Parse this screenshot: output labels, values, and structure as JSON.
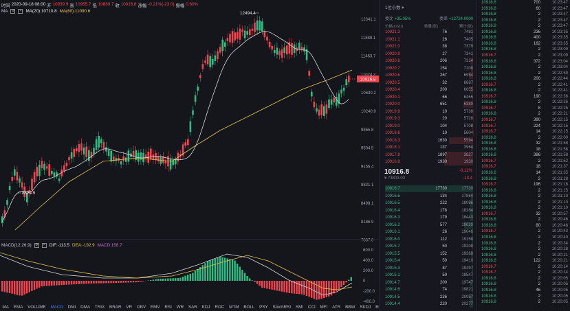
{
  "info": {
    "time_label": "时间",
    "time": "2020-09-18 08:00",
    "open_label": "开",
    "open": "10939.9",
    "high_label": "高",
    "high": "10955.7",
    "low_label": "低",
    "low": "10889.7",
    "close_label": "收",
    "close": "10916.8",
    "change_label": "涨幅",
    "change": "-0.21%(-23.0)",
    "amp_label": "振幅",
    "amp": "0.60%"
  },
  "ma": {
    "label": "MA",
    "ma20": "MA(20):10710.8",
    "ma60": "MA(60):11090.6"
  },
  "macd": {
    "label": "MACD(12,26,9)",
    "dif": "DIF:-113.5",
    "dea": "DEA:-192.9",
    "macd": "MACD:158.7"
  },
  "price_axis": [
    "12341.1",
    "11889.1",
    "11463.7",
    "11024.2",
    "10630.2",
    "10240.9",
    "9865.8",
    "9504.5",
    "9156.4",
    "8821.1",
    "8498.1",
    "8186.9",
    "7887.0"
  ],
  "current_price_tag": "10916.8",
  "chart_markers": {
    "high": "12494.4",
    "low": "8624.9"
  },
  "macd_axis": [
    "600.0",
    "400.0",
    "200.0",
    "0",
    "-200.0",
    "-400.0"
  ],
  "indicators": [
    "MA",
    "EMA",
    "VOLUME",
    "MACD",
    "DMI",
    "DMA",
    "TRIX",
    "BRAR",
    "VR",
    "OBV",
    "EMV",
    "RSI",
    "WR",
    "SAR",
    "KDJ",
    "ROC",
    "MTM",
    "BOLL",
    "PSY",
    "StochRSI",
    "SMI",
    "CCI",
    "MFI",
    "ATR",
    "BBW",
    "SKDJ",
    "BIAS"
  ],
  "active_indicator": "MACD",
  "orderbook": {
    "precision": "1位小数",
    "buy_ratio_label": "委比",
    "buy_ratio": "+35.05%",
    "diff_label": "委差",
    "diff": "+12724.0000",
    "col_price": "价格(USD)",
    "col_amount": "数量(张)",
    "col_total": "累计(张)",
    "asks": [
      {
        "price": "10921.3",
        "amount": "76",
        "total": "7481"
      },
      {
        "price": "10921.1",
        "amount": "26",
        "total": "7405"
      },
      {
        "price": "10921.0",
        "amount": "38",
        "total": "7379"
      },
      {
        "price": "10920.9",
        "amount": "27",
        "total": "7341"
      },
      {
        "price": "10920.8",
        "amount": "206",
        "total": "7314"
      },
      {
        "price": "10920.7",
        "amount": "154",
        "total": "7108"
      },
      {
        "price": "10920.6",
        "amount": "267",
        "total": "6954"
      },
      {
        "price": "10920.5",
        "amount": "32",
        "total": "6687"
      },
      {
        "price": "10920.4",
        "amount": "200",
        "total": "6655"
      },
      {
        "price": "10920.1",
        "amount": "66",
        "total": "6455"
      },
      {
        "price": "10920.0",
        "amount": "651",
        "total": "6389"
      },
      {
        "price": "10919.9",
        "amount": "10",
        "total": "5738"
      },
      {
        "price": "10919.3",
        "amount": "20",
        "total": "5728"
      },
      {
        "price": "10919.0",
        "amount": "104",
        "total": "5708"
      },
      {
        "price": "10918.6",
        "amount": "10",
        "total": "5604"
      },
      {
        "price": "10918.3",
        "amount": "1630",
        "total": "5594"
      },
      {
        "price": "10918.1",
        "amount": "137",
        "total": "3964"
      },
      {
        "price": "10917.9",
        "amount": "1897",
        "total": "3827"
      },
      {
        "price": "10916.8",
        "amount": "1930",
        "total": "1930"
      }
    ],
    "mid_price": "10916.8",
    "mid_change": "-0.12%",
    "mid_cny": "¥ 73803.03",
    "mid_abs": "-13.4",
    "bids": [
      {
        "price": "10916.7",
        "amount": "17730",
        "total": "17730"
      },
      {
        "price": "10916.6",
        "amount": "134",
        "total": "17864"
      },
      {
        "price": "10916.5",
        "amount": "222",
        "total": "18086"
      },
      {
        "price": "10916.4",
        "amount": "178",
        "total": "18264"
      },
      {
        "price": "10916.3",
        "amount": "179",
        "total": "18443"
      },
      {
        "price": "10916.2",
        "amount": "577",
        "total": "19020"
      },
      {
        "price": "10916.1",
        "amount": "26",
        "total": "19046"
      },
      {
        "price": "10916.0",
        "amount": "112",
        "total": "19158"
      },
      {
        "price": "10915.7",
        "amount": "50",
        "total": "19208"
      },
      {
        "price": "10915.5",
        "amount": "152",
        "total": "19360"
      },
      {
        "price": "10915.4",
        "amount": "50",
        "total": "19410"
      },
      {
        "price": "10915.3",
        "amount": "87",
        "total": "19497"
      },
      {
        "price": "10915.1",
        "amount": "50",
        "total": "19547"
      },
      {
        "price": "10914.7",
        "amount": "200",
        "total": "19747"
      },
      {
        "price": "10914.6",
        "amount": "74",
        "total": "19821"
      },
      {
        "price": "10914.5",
        "amount": "236",
        "total": "20057"
      },
      {
        "price": "10914.4",
        "amount": "220",
        "total": "20277"
      }
    ]
  },
  "trades": [
    {
      "price": "10916.8",
      "side": "buy",
      "amount": "700",
      "time": "10:23:47"
    },
    {
      "price": "10916.8",
      "side": "buy",
      "amount": "60",
      "time": "10:23:47"
    },
    {
      "price": "10916.8",
      "side": "buy",
      "amount": "2",
      "time": "10:23:47"
    },
    {
      "price": "10916.8",
      "side": "buy",
      "amount": "2",
      "time": "10:23:47"
    },
    {
      "price": "10916.8",
      "side": "buy",
      "amount": "2",
      "time": "10:23:47"
    },
    {
      "price": "10916.8",
      "side": "buy",
      "amount": "236",
      "time": "10:23:35"
    },
    {
      "price": "10916.8",
      "side": "buy",
      "amount": "400",
      "time": "10:23:35"
    },
    {
      "price": "10916.8",
      "side": "buy",
      "amount": "162",
      "time": "10:23:35"
    },
    {
      "price": "10916.8",
      "side": "buy",
      "amount": "2",
      "time": "10:23:09"
    },
    {
      "price": "10916.7",
      "side": "sell",
      "amount": "2",
      "time": "10:23:09"
    },
    {
      "price": "10916.8",
      "side": "buy",
      "amount": "372",
      "time": "10:23:04"
    },
    {
      "price": "10916.8",
      "side": "buy",
      "amount": "2",
      "time": "10:23:04"
    },
    {
      "price": "10916.8",
      "side": "buy",
      "amount": "2",
      "time": "10:22:59"
    },
    {
      "price": "10916.8",
      "side": "buy",
      "amount": "200",
      "time": "10:22:44"
    },
    {
      "price": "10916.7",
      "side": "sell",
      "amount": "2",
      "time": "10:22:41"
    },
    {
      "price": "10916.8",
      "side": "buy",
      "amount": "2",
      "time": "10:22:41"
    },
    {
      "price": "10916.7",
      "side": "sell",
      "amount": "190",
      "time": "10:22:36"
    },
    {
      "price": "10916.8",
      "side": "buy",
      "amount": "2",
      "time": "10:22:25"
    },
    {
      "price": "10916.7",
      "side": "sell",
      "amount": "8",
      "time": "10:22:25"
    },
    {
      "price": "10916.8",
      "side": "buy",
      "amount": "2",
      "time": "10:22:21"
    },
    {
      "price": "10916.7",
      "side": "sell",
      "amount": "390",
      "time": "10:22:15"
    },
    {
      "price": "10916.7",
      "side": "sell",
      "amount": "224",
      "time": "10:22:15"
    },
    {
      "price": "10916.7",
      "side": "sell",
      "amount": "14",
      "time": "10:22:15"
    },
    {
      "price": "10916.8",
      "side": "buy",
      "amount": "2",
      "time": "10:22:00"
    },
    {
      "price": "10916.8",
      "side": "buy",
      "amount": "32",
      "time": "10:21:58"
    },
    {
      "price": "10916.8",
      "side": "buy",
      "amount": "18",
      "time": "10:21:58"
    },
    {
      "price": "10916.8",
      "side": "buy",
      "amount": "386",
      "time": "10:21:58"
    },
    {
      "price": "10916.7",
      "side": "sell",
      "amount": "2",
      "time": "10:21:52"
    },
    {
      "price": "10916.7",
      "side": "sell",
      "amount": "18",
      "time": "10:21:37"
    },
    {
      "price": "10916.8",
      "side": "buy",
      "amount": "14",
      "time": "10:21:35"
    },
    {
      "price": "10916.8",
      "side": "buy",
      "amount": "2",
      "time": "10:21:28"
    },
    {
      "price": "10916.7",
      "side": "sell",
      "amount": "196",
      "time": "10:21:16"
    },
    {
      "price": "10916.8",
      "side": "buy",
      "amount": "2",
      "time": "10:21:15"
    },
    {
      "price": "10916.8",
      "side": "buy",
      "amount": "2",
      "time": "10:21:10"
    },
    {
      "price": "10916.8",
      "side": "buy",
      "amount": "2",
      "time": "10:21:10"
    },
    {
      "price": "10916.8",
      "side": "buy",
      "amount": "2",
      "time": "10:21:10"
    },
    {
      "price": "10916.7",
      "side": "sell",
      "amount": "32",
      "time": "10:20:57"
    },
    {
      "price": "10916.8",
      "side": "buy",
      "amount": "2",
      "time": "10:20:46"
    },
    {
      "price": "10916.8",
      "side": "buy",
      "amount": "80",
      "time": "10:20:46"
    },
    {
      "price": "10916.7",
      "side": "sell",
      "amount": "2",
      "time": "10:20:43"
    },
    {
      "price": "10916.8",
      "side": "buy",
      "amount": "2",
      "time": "10:20:40"
    },
    {
      "price": "10916.8",
      "side": "buy",
      "amount": "2",
      "time": "10:20:34"
    },
    {
      "price": "10916.8",
      "side": "buy",
      "amount": "2",
      "time": "10:20:28"
    },
    {
      "price": "10916.8",
      "side": "buy",
      "amount": "2",
      "time": "10:20:21"
    },
    {
      "price": "10916.8",
      "side": "buy",
      "amount": "122",
      "time": "10:20:21"
    },
    {
      "price": "10916.7",
      "side": "sell",
      "amount": "2",
      "time": "10:20:14"
    },
    {
      "price": "10916.7",
      "side": "sell",
      "amount": "2",
      "time": "10:20:14"
    },
    {
      "price": "10916.8",
      "side": "buy",
      "amount": "2",
      "time": "10:20:05"
    },
    {
      "price": "10916.8",
      "side": "buy",
      "amount": "2",
      "time": "10:20:05"
    },
    {
      "price": "10916.8",
      "side": "buy",
      "amount": "46",
      "time": "10:20:05"
    },
    {
      "price": "10916.8",
      "side": "buy",
      "amount": "2",
      "time": "10:20:05"
    },
    {
      "price": "10916.8",
      "side": "buy",
      "amount": "2",
      "time": "10:20:05"
    }
  ],
  "colors": {
    "up": "#2ebd85",
    "down": "#f0454e",
    "ma20": "#d5d7dc",
    "ma60": "#e7c54a",
    "accent": "#3e7ff0"
  }
}
